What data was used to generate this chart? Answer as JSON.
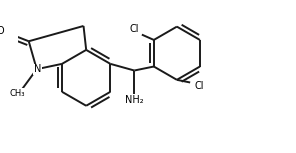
{
  "bg_color": "#ffffff",
  "line_color": "#1a1a1a",
  "line_width": 1.4,
  "doff": 0.015,
  "font_size_atom": 7.0,
  "font_size_small": 6.0,
  "xlim": [
    0.0,
    1.0
  ],
  "ylim": [
    0.05,
    0.62
  ]
}
